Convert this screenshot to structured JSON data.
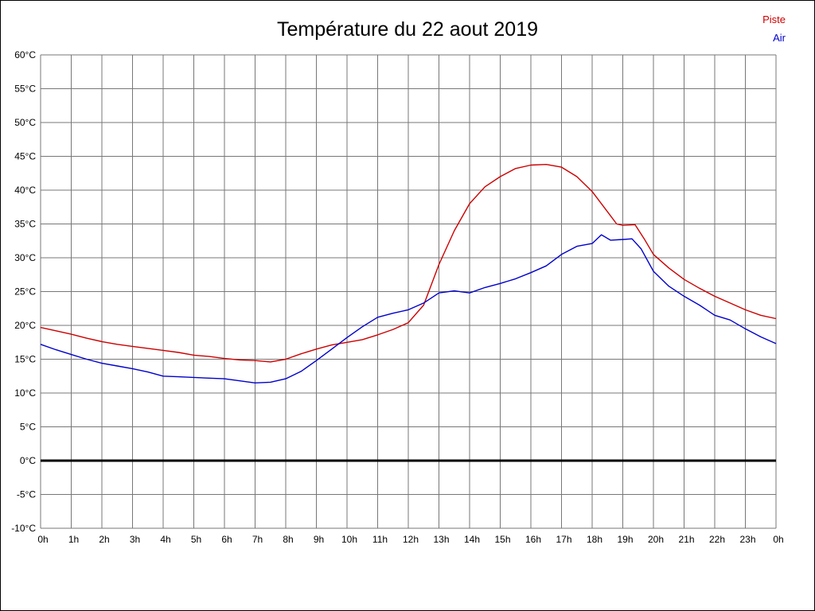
{
  "chart_data": {
    "type": "line",
    "title": "Température du 22 aout 2019",
    "xlabel": "",
    "ylabel": "",
    "xlim": [
      0,
      24
    ],
    "ylim": [
      -10,
      60
    ],
    "grid": true,
    "zero_line": {
      "value": 0,
      "color": "#000000"
    },
    "grid_color": "#777777",
    "legend_position": "top-right",
    "x_tick_values": [
      0,
      1,
      2,
      3,
      4,
      5,
      6,
      7,
      8,
      9,
      10,
      11,
      12,
      13,
      14,
      15,
      16,
      17,
      18,
      19,
      20,
      21,
      22,
      23,
      24
    ],
    "x_tick_labels": [
      "0h",
      "1h",
      "2h",
      "3h",
      "4h",
      "5h",
      "6h",
      "7h",
      "8h",
      "9h",
      "10h",
      "11h",
      "12h",
      "13h",
      "14h",
      "15h",
      "16h",
      "17h",
      "18h",
      "19h",
      "20h",
      "21h",
      "22h",
      "23h",
      "0h"
    ],
    "y_tick_values": [
      60,
      55,
      50,
      45,
      40,
      35,
      30,
      25,
      20,
      15,
      10,
      5,
      0,
      -5,
      -10
    ],
    "y_tick_labels": [
      "60°C",
      "55°C",
      "50°C",
      "45°C",
      "40°C",
      "35°C",
      "30°C",
      "25°C",
      "20°C",
      "15°C",
      "10°C",
      "5°C",
      "0°C",
      "-5°C",
      "-10°C"
    ],
    "series": [
      {
        "name": "Piste",
        "color": "#cc0000",
        "points": [
          [
            0,
            19.7
          ],
          [
            0.5,
            19.2
          ],
          [
            1,
            18.7
          ],
          [
            1.5,
            18.1
          ],
          [
            2,
            17.6
          ],
          [
            2.5,
            17.2
          ],
          [
            3,
            16.9
          ],
          [
            3.5,
            16.6
          ],
          [
            4,
            16.3
          ],
          [
            4.5,
            16.0
          ],
          [
            5,
            15.6
          ],
          [
            5.5,
            15.4
          ],
          [
            6,
            15.1
          ],
          [
            6.5,
            14.9
          ],
          [
            7,
            14.8
          ],
          [
            7.5,
            14.6
          ],
          [
            8,
            15.0
          ],
          [
            8.5,
            15.8
          ],
          [
            9,
            16.5
          ],
          [
            9.5,
            17.1
          ],
          [
            10,
            17.5
          ],
          [
            10.5,
            17.9
          ],
          [
            11,
            18.6
          ],
          [
            11.5,
            19.4
          ],
          [
            12,
            20.4
          ],
          [
            12.5,
            23.0
          ],
          [
            13,
            29.0
          ],
          [
            13.5,
            34.0
          ],
          [
            14,
            38.0
          ],
          [
            14.5,
            40.5
          ],
          [
            15,
            42.0
          ],
          [
            15.5,
            43.2
          ],
          [
            16,
            43.7
          ],
          [
            16.5,
            43.8
          ],
          [
            17,
            43.4
          ],
          [
            17.5,
            42.0
          ],
          [
            18,
            39.8
          ],
          [
            18.5,
            36.8
          ],
          [
            18.8,
            35.0
          ],
          [
            19,
            34.8
          ],
          [
            19.4,
            34.9
          ],
          [
            19.7,
            32.8
          ],
          [
            20,
            30.5
          ],
          [
            20.5,
            28.5
          ],
          [
            21,
            26.8
          ],
          [
            21.5,
            25.5
          ],
          [
            22,
            24.3
          ],
          [
            22.5,
            23.3
          ],
          [
            23,
            22.3
          ],
          [
            23.5,
            21.5
          ],
          [
            24,
            21.0
          ]
        ]
      },
      {
        "name": "Air",
        "color": "#0000cc",
        "points": [
          [
            0,
            17.2
          ],
          [
            0.5,
            16.4
          ],
          [
            1,
            15.7
          ],
          [
            1.5,
            15.0
          ],
          [
            2,
            14.4
          ],
          [
            2.5,
            14.0
          ],
          [
            3,
            13.6
          ],
          [
            3.5,
            13.1
          ],
          [
            4,
            12.5
          ],
          [
            4.5,
            12.4
          ],
          [
            5,
            12.3
          ],
          [
            5.5,
            12.2
          ],
          [
            6,
            12.1
          ],
          [
            6.5,
            11.8
          ],
          [
            7,
            11.5
          ],
          [
            7.5,
            11.6
          ],
          [
            8,
            12.1
          ],
          [
            8.5,
            13.2
          ],
          [
            9,
            14.8
          ],
          [
            9.5,
            16.5
          ],
          [
            10,
            18.2
          ],
          [
            10.5,
            19.8
          ],
          [
            11,
            21.2
          ],
          [
            11.5,
            21.8
          ],
          [
            12,
            22.3
          ],
          [
            12.5,
            23.3
          ],
          [
            13,
            24.8
          ],
          [
            13.5,
            25.1
          ],
          [
            14,
            24.8
          ],
          [
            14.5,
            25.6
          ],
          [
            15,
            26.2
          ],
          [
            15.5,
            26.9
          ],
          [
            16,
            27.8
          ],
          [
            16.5,
            28.8
          ],
          [
            17,
            30.5
          ],
          [
            17.5,
            31.7
          ],
          [
            18,
            32.1
          ],
          [
            18.3,
            33.4
          ],
          [
            18.6,
            32.6
          ],
          [
            19,
            32.7
          ],
          [
            19.3,
            32.8
          ],
          [
            19.6,
            31.3
          ],
          [
            20,
            28.0
          ],
          [
            20.5,
            25.8
          ],
          [
            21,
            24.3
          ],
          [
            21.5,
            23.0
          ],
          [
            22,
            21.5
          ],
          [
            22.5,
            20.8
          ],
          [
            23,
            19.5
          ],
          [
            23.5,
            18.3
          ],
          [
            24,
            17.3
          ]
        ]
      }
    ]
  }
}
